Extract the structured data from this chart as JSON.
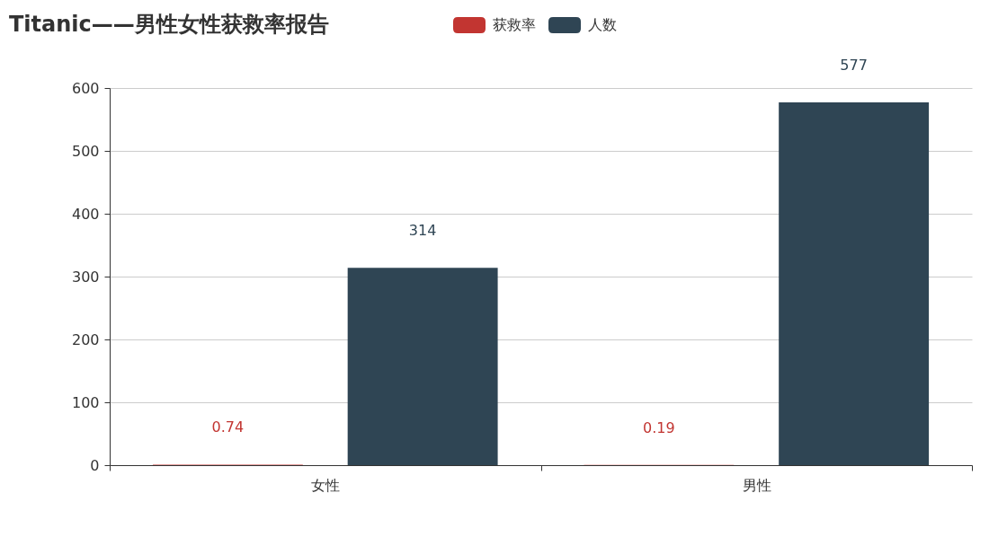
{
  "chart_data": {
    "type": "bar",
    "title": "Titanic——男性女性获救率报告",
    "categories": [
      "女性",
      "男性"
    ],
    "series": [
      {
        "name": "获救率",
        "color": "#c23531",
        "values": [
          0.74,
          0.19
        ]
      },
      {
        "name": "人数",
        "color": "#2f4554",
        "values": [
          314,
          577
        ]
      }
    ],
    "ylim": [
      0,
      600
    ],
    "yticks": [
      0,
      100,
      200,
      300,
      400,
      500,
      600
    ],
    "grid": "y",
    "legend": "top",
    "data_labels": true
  }
}
